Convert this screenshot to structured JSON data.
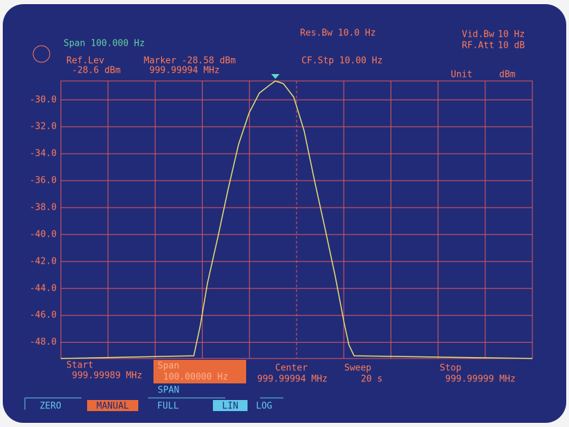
{
  "chart_data": {
    "type": "line",
    "labels": {
      "span_top": "Span  100.000 Hz",
      "res_bw": "Res.Bw  10.0 Hz",
      "vid_bw": "Vid.Bw",
      "vid_bw_value": "10 Hz",
      "rf_att": "RF.Att",
      "rf_att_value": "10 dB",
      "ref_lev": "Ref.Lev",
      "ref_lev_value": "-28.6 dBm",
      "marker": "Marker  -28.58 dBm",
      "marker_freq": "999.99994 MHz",
      "cf_stp": "CF.Stp  10.00 Hz",
      "unit": "Unit",
      "unit_value": "dBm",
      "start": "Start",
      "start_value": "999.99989 MHz",
      "span": "Span",
      "span_value": "100.00000 Hz",
      "center": "Center",
      "center_value": "999.99994 MHz",
      "sweep": "Sweep",
      "sweep_value": "20 s",
      "stop": "Stop",
      "stop_value": "999.99999 MHz"
    },
    "softkeys": {
      "group": "SPAN",
      "keys": [
        "ZERO",
        "MANUAL",
        "FULL",
        "LIN",
        "LOG"
      ]
    },
    "x": [
      999.99989,
      999.9999182,
      999.9999196,
      999.9999211,
      999.9999233,
      999.9999255,
      999.9999277,
      999.9999299,
      999.9999321,
      999.9999343,
      999.9999355,
      999.9999372,
      999.9999394,
      999.9999416,
      999.9999438,
      999.999946,
      999.9999482,
      999.9999501,
      999.9999511,
      999.9999522,
      999.99999
    ],
    "series": [
      {
        "color": "#e8e070",
        "values": [
          -49.2,
          -49.0,
          -46.7,
          -43.6,
          -40.2,
          -36.6,
          -33.3,
          -31.0,
          -29.5,
          -28.9,
          -28.6,
          -28.8,
          -29.8,
          -32.3,
          -36.0,
          -39.5,
          -43.1,
          -46.6,
          -48.2,
          -49.0,
          -49.2
        ]
      }
    ],
    "xlim": [
      999.99989,
      999.99999
    ],
    "ylim": [
      -49.2,
      -28.6
    ],
    "yticks": [
      {
        "value": -30,
        "label": "-30.0"
      },
      {
        "value": -32,
        "label": "-32.0"
      },
      {
        "value": -34,
        "label": "-34.0"
      },
      {
        "value": -36,
        "label": "-36.0"
      },
      {
        "value": -38,
        "label": "-38.0"
      },
      {
        "value": -40,
        "label": "-40.0"
      },
      {
        "value": -42,
        "label": "-42.0"
      },
      {
        "value": -44,
        "label": "-44.0"
      },
      {
        "value": -46,
        "label": "-46.0"
      },
      {
        "value": -48,
        "label": "-48.0"
      }
    ],
    "grid": true
  }
}
